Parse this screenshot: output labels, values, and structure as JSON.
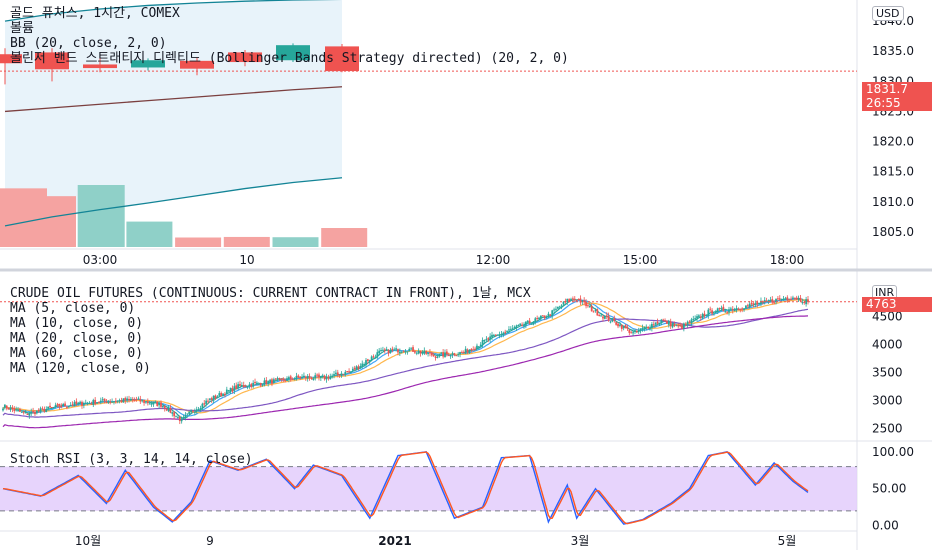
{
  "colors": {
    "up": "#26a69a",
    "down": "#ef5350",
    "vol_up": "#8fd0c8",
    "vol_down": "#f5a3a1",
    "bb": "#138496",
    "basis": "#7b3f3f",
    "stoch_k": "#2962ff",
    "stoch_d": "#ff5722",
    "stoch_fill": "#e1c9fb",
    "ma5": "#26a69a",
    "ma10": "#42a5f5",
    "ma20": "#ffb74d",
    "ma60": "#7e57c2",
    "ma120": "#9c27b0"
  },
  "top": {
    "legend": [
      "골드 퓨처스, 1시간, COMEX",
      "볼륨",
      "BB (20, close, 2, 0)",
      "볼린저 밴드 스트래티지 디렉티드 (Bollinger Bands Strategy directed) (20, 2, 0)"
    ],
    "currency_badge": "USD",
    "last_price": "1831.7",
    "countdown": "26:55"
  },
  "bottom": {
    "legend": [
      "CRUDE OIL FUTURES (CONTINUOUS: CURRENT CONTRACT IN FRONT), 1날, MCX",
      "MA (5, close, 0)",
      "MA (10, close, 0)",
      "MA (20, close, 0)",
      "MA (60, close, 0)",
      "MA (120, close, 0)"
    ],
    "currency_badge": "INR",
    "last_price": "4763",
    "osc_legend": "Stoch RSI (3, 3, 14, 14, close)"
  },
  "chart_data": [
    {
      "type": "candlestick",
      "title": "골드 퓨처스, 1시간, COMEX",
      "x_ticks": [
        "03:00",
        "10",
        "12:00",
        "15:00",
        "18:00"
      ],
      "y_ticks": [
        1805,
        1810,
        1815,
        1820,
        1825,
        1830,
        1835,
        1840
      ],
      "ylim": [
        1802.5,
        1843.5
      ],
      "candles": [
        {
          "o": 1834.5,
          "h": 1835.5,
          "l": 1829.5,
          "c": 1833.0
        },
        {
          "o": 1834.8,
          "h": 1835.5,
          "l": 1830.0,
          "c": 1832.0
        },
        {
          "o": 1832.8,
          "h": 1834.5,
          "l": 1831.5,
          "c": 1832.2
        },
        {
          "o": 1832.3,
          "h": 1833.8,
          "l": 1831.8,
          "c": 1833.5
        },
        {
          "o": 1833.4,
          "h": 1833.9,
          "l": 1831.0,
          "c": 1832.1
        },
        {
          "o": 1834.8,
          "h": 1835.2,
          "l": 1832.5,
          "c": 1833.2
        },
        {
          "o": 1833.5,
          "h": 1836.3,
          "l": 1833.2,
          "c": 1836.0
        },
        {
          "o": 1835.8,
          "h": 1836.2,
          "l": 1831.5,
          "c": 1831.7
        }
      ],
      "volume": [
        {
          "v": 1050,
          "dir": "down"
        },
        {
          "v": 910,
          "dir": "down"
        },
        {
          "v": 1110,
          "dir": "up"
        },
        {
          "v": 455,
          "dir": "up"
        },
        {
          "v": 170,
          "dir": "down"
        },
        {
          "v": 180,
          "dir": "down"
        },
        {
          "v": 175,
          "dir": "up"
        },
        {
          "v": 340,
          "dir": "down"
        }
      ],
      "bb_upper": [
        1840.0,
        1841.2,
        1842.0,
        1842.6,
        1843.0,
        1843.3,
        1843.5,
        1843.6
      ],
      "bb_basis": [
        1825.0,
        1825.6,
        1826.2,
        1826.8,
        1827.4,
        1828.0,
        1828.6,
        1829.1
      ],
      "bb_lower": [
        1806.0,
        1807.5,
        1808.7,
        1809.8,
        1811.0,
        1812.2,
        1813.2,
        1814.0
      ]
    },
    {
      "type": "candlestick",
      "title": "CRUDE OIL FUTURES (CONTINUOUS: CURRENT CONTRACT IN FRONT), 1날, MCX",
      "x_ticks": [
        "10월",
        "9",
        "2021",
        "3월",
        "5월"
      ],
      "y_ticks": [
        2500,
        3000,
        3500,
        4000,
        4500
      ],
      "ylim": [
        2350,
        5150
      ],
      "close_anchors": [
        [
          0,
          2900
        ],
        [
          12,
          2760
        ],
        [
          30,
          2900
        ],
        [
          50,
          2980
        ],
        [
          70,
          3010
        ],
        [
          85,
          2920
        ],
        [
          95,
          2640
        ],
        [
          100,
          2800
        ],
        [
          110,
          3020
        ],
        [
          125,
          3250
        ],
        [
          145,
          3350
        ],
        [
          160,
          3420
        ],
        [
          170,
          3400
        ],
        [
          185,
          3520
        ],
        [
          200,
          3860
        ],
        [
          215,
          3920
        ],
        [
          230,
          3800
        ],
        [
          245,
          3860
        ],
        [
          260,
          4130
        ],
        [
          275,
          4330
        ],
        [
          290,
          4520
        ],
        [
          300,
          4780
        ],
        [
          305,
          4820
        ],
        [
          315,
          4580
        ],
        [
          325,
          4400
        ],
        [
          335,
          4200
        ],
        [
          350,
          4430
        ],
        [
          360,
          4300
        ],
        [
          375,
          4580
        ],
        [
          390,
          4650
        ],
        [
          405,
          4750
        ],
        [
          420,
          4850
        ],
        [
          428,
          4763
        ]
      ],
      "ma_periods": [
        5,
        10,
        20,
        60,
        120
      ],
      "last_price": 4763
    },
    {
      "type": "line",
      "title": "Stoch RSI (3, 3, 14, 14, close)",
      "y_ticks": [
        0,
        50,
        100
      ],
      "bands": [
        20,
        80
      ],
      "ylim": [
        -6,
        112
      ],
      "k_anchors": [
        [
          0,
          50
        ],
        [
          20,
          40
        ],
        [
          40,
          68
        ],
        [
          55,
          30
        ],
        [
          65,
          75
        ],
        [
          80,
          25
        ],
        [
          90,
          5
        ],
        [
          100,
          32
        ],
        [
          110,
          88
        ],
        [
          125,
          75
        ],
        [
          140,
          90
        ],
        [
          155,
          50
        ],
        [
          165,
          82
        ],
        [
          180,
          68
        ],
        [
          195,
          10
        ],
        [
          210,
          95
        ],
        [
          225,
          100
        ],
        [
          240,
          10
        ],
        [
          255,
          25
        ],
        [
          265,
          92
        ],
        [
          280,
          95
        ],
        [
          290,
          5
        ],
        [
          300,
          55
        ],
        [
          305,
          10
        ],
        [
          315,
          50
        ],
        [
          330,
          2
        ],
        [
          340,
          8
        ],
        [
          355,
          30
        ],
        [
          365,
          50
        ],
        [
          375,
          95
        ],
        [
          385,
          100
        ],
        [
          400,
          55
        ],
        [
          410,
          85
        ],
        [
          420,
          60
        ],
        [
          428,
          45
        ]
      ]
    }
  ]
}
